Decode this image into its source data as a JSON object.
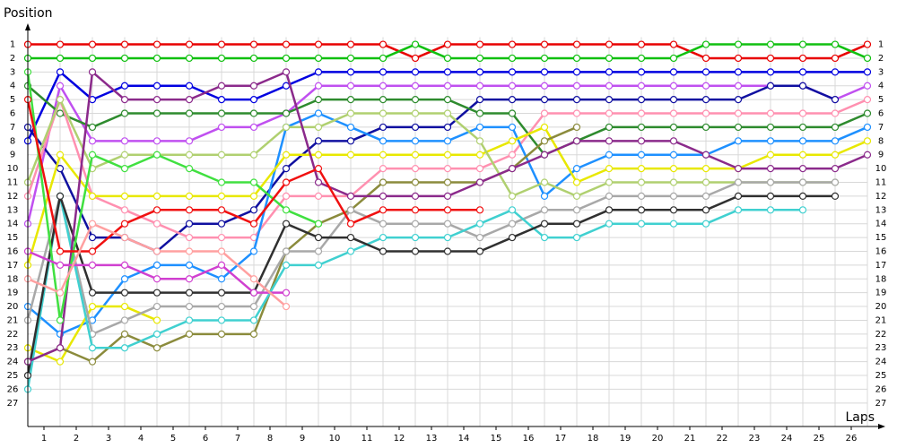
{
  "chart_data": {
    "type": "line",
    "title": "Position",
    "x_label": "Laps",
    "x": [
      0,
      1,
      2,
      3,
      4,
      5,
      6,
      7,
      8,
      9,
      10,
      11,
      12,
      13,
      14,
      15,
      16,
      17,
      18,
      19,
      20,
      21,
      22,
      23,
      24,
      25,
      26
    ],
    "xlim": [
      0,
      26
    ],
    "xticks": [
      {
        "value": 0.5,
        "label": "1"
      },
      {
        "value": 1.5,
        "label": "2"
      },
      {
        "value": 2.5,
        "label": "3"
      },
      {
        "value": 3.5,
        "label": "4"
      },
      {
        "value": 4.5,
        "label": "5"
      },
      {
        "value": 5.5,
        "label": "6"
      },
      {
        "value": 6.5,
        "label": "7"
      },
      {
        "value": 7.5,
        "label": "8"
      },
      {
        "value": 8.5,
        "label": "9"
      },
      {
        "value": 9.5,
        "label": "10"
      },
      {
        "value": 10.5,
        "label": "11"
      },
      {
        "value": 11.5,
        "label": "12"
      },
      {
        "value": 12.5,
        "label": "13"
      },
      {
        "value": 13.5,
        "label": "14"
      },
      {
        "value": 14.5,
        "label": "15"
      },
      {
        "value": 15.5,
        "label": "16"
      },
      {
        "value": 16.5,
        "label": "17"
      },
      {
        "value": 17.5,
        "label": "18"
      },
      {
        "value": 18.5,
        "label": "19"
      },
      {
        "value": 19.5,
        "label": "20"
      },
      {
        "value": 20.5,
        "label": "21"
      },
      {
        "value": 21.5,
        "label": "22"
      },
      {
        "value": 22.5,
        "label": "23"
      },
      {
        "value": 23.5,
        "label": "24"
      },
      {
        "value": 24.5,
        "label": "25"
      },
      {
        "value": 25.5,
        "label": "26"
      }
    ],
    "ylim": [
      28.7,
      -0.4
    ],
    "yticks": [
      1,
      2,
      3,
      4,
      5,
      6,
      7,
      8,
      9,
      10,
      11,
      12,
      13,
      14,
      15,
      16,
      17,
      18,
      19,
      20,
      21,
      22,
      23,
      24,
      25,
      26,
      27
    ],
    "grid": true,
    "series": [
      {
        "color": "#e80000",
        "values": [
          1,
          1,
          1,
          1,
          1,
          1,
          1,
          1,
          1,
          1,
          1,
          1,
          2,
          1,
          1,
          1,
          1,
          1,
          1,
          1,
          1,
          2,
          2,
          2,
          2,
          2,
          1
        ]
      },
      {
        "color": "#10c010",
        "values": [
          2,
          2,
          2,
          2,
          2,
          2,
          2,
          2,
          2,
          2,
          2,
          2,
          1,
          2,
          2,
          2,
          2,
          2,
          2,
          2,
          2,
          1,
          1,
          1,
          1,
          1,
          2
        ]
      },
      {
        "color": "#0000e0",
        "values": [
          8,
          3,
          5,
          4,
          4,
          4,
          5,
          5,
          4,
          3,
          3,
          3,
          3,
          3,
          3,
          3,
          3,
          3,
          3,
          3,
          3,
          3,
          3,
          3,
          3,
          3,
          3
        ]
      },
      {
        "color": "#c050f0",
        "values": [
          14,
          4,
          8,
          8,
          8,
          8,
          7,
          7,
          6,
          4,
          4,
          4,
          4,
          4,
          4,
          4,
          4,
          4,
          4,
          4,
          4,
          4,
          4,
          4,
          4,
          5,
          4
        ]
      },
      {
        "color": "#1010a0",
        "values": [
          7,
          10,
          15,
          15,
          16,
          14,
          14,
          13,
          10,
          8,
          8,
          7,
          7,
          7,
          5,
          5,
          5,
          5,
          5,
          5,
          5,
          5,
          5,
          4,
          4,
          5,
          null
        ]
      },
      {
        "color": "#2e8b2e",
        "values": [
          4,
          6,
          7,
          6,
          6,
          6,
          6,
          6,
          6,
          5,
          5,
          5,
          5,
          5,
          6,
          6,
          9,
          8,
          7,
          7,
          7,
          7,
          7,
          7,
          7,
          7,
          6
        ]
      },
      {
        "color": "#ff90b0",
        "values": [
          12,
          5,
          12,
          13,
          14,
          15,
          15,
          15,
          12,
          12,
          12,
          10,
          10,
          10,
          10,
          9,
          6,
          6,
          6,
          6,
          6,
          6,
          6,
          6,
          6,
          6,
          5
        ]
      },
      {
        "color": "#1e90ff",
        "values": [
          20,
          22,
          21,
          18,
          17,
          17,
          18,
          16,
          7,
          6,
          7,
          8,
          8,
          8,
          7,
          7,
          12,
          10,
          9,
          9,
          9,
          9,
          8,
          8,
          8,
          8,
          7
        ]
      },
      {
        "color": "#e8e800",
        "values": [
          23,
          24,
          20,
          20,
          21,
          null,
          null,
          null,
          null,
          null,
          null,
          null,
          null,
          null,
          null,
          null,
          null,
          null,
          null,
          null,
          null,
          null,
          null,
          null,
          null,
          null,
          null
        ]
      },
      {
        "color": "#e8e800",
        "values": [
          17,
          9,
          12,
          12,
          12,
          12,
          12,
          12,
          9,
          9,
          9,
          9,
          9,
          9,
          9,
          8,
          7,
          11,
          10,
          10,
          10,
          10,
          10,
          9,
          9,
          9,
          8
        ]
      },
      {
        "color": "#b0d070",
        "values": [
          11,
          5,
          10,
          9,
          9,
          9,
          9,
          9,
          7,
          7,
          6,
          6,
          6,
          6,
          8,
          12,
          11,
          12,
          11,
          11,
          11,
          11,
          11,
          11,
          11,
          11,
          null
        ]
      },
      {
        "color": "#8b8b3c",
        "values": [
          24,
          23,
          24,
          22,
          23,
          22,
          22,
          22,
          16,
          14,
          13,
          11,
          11,
          11,
          11,
          10,
          8,
          7,
          null,
          null,
          null,
          null,
          null,
          null,
          null,
          null,
          null
        ]
      },
      {
        "color": "#a8a8a8",
        "values": [
          21,
          12,
          22,
          21,
          20,
          20,
          20,
          20,
          16,
          16,
          13,
          14,
          14,
          14,
          15,
          14,
          13,
          13,
          12,
          12,
          12,
          12,
          11,
          11,
          11,
          11,
          null
        ]
      },
      {
        "color": "#40d0d0",
        "values": [
          26,
          12,
          23,
          23,
          22,
          21,
          21,
          21,
          17,
          17,
          16,
          15,
          15,
          15,
          14,
          13,
          15,
          15,
          14,
          14,
          14,
          14,
          13,
          13,
          13,
          null,
          null
        ]
      },
      {
        "color": "#303030",
        "values": [
          25,
          12,
          19,
          19,
          19,
          19,
          19,
          19,
          14,
          15,
          15,
          16,
          16,
          16,
          16,
          15,
          14,
          14,
          13,
          13,
          13,
          13,
          12,
          12,
          12,
          12,
          null
        ]
      },
      {
        "color": "#8b2a8b",
        "values": [
          24,
          23,
          3,
          5,
          5,
          5,
          4,
          4,
          3,
          11,
          12,
          12,
          12,
          12,
          11,
          10,
          9,
          8,
          8,
          8,
          8,
          9,
          10,
          10,
          10,
          10,
          9
        ]
      },
      {
        "color": "#40e040",
        "values": [
          3,
          21,
          9,
          10,
          9,
          10,
          11,
          11,
          13,
          14,
          null,
          null,
          null,
          null,
          null,
          null,
          null,
          null,
          null,
          null,
          null,
          null,
          null,
          null,
          null,
          null,
          null
        ]
      },
      {
        "color": "#f01010",
        "values": [
          5,
          16,
          16,
          14,
          13,
          13,
          13,
          14,
          11,
          10,
          14,
          13,
          13,
          13,
          13,
          null,
          null,
          null,
          null,
          null,
          null,
          null,
          null,
          null,
          null,
          null,
          null
        ]
      },
      {
        "color": "#d040d0",
        "values": [
          16,
          17,
          17,
          17,
          18,
          18,
          17,
          19,
          19,
          null,
          null,
          null,
          null,
          null,
          null,
          null,
          null,
          null,
          null,
          null,
          null,
          null,
          null,
          null,
          null,
          null,
          null
        ]
      },
      {
        "color": "#ffa0a0",
        "values": [
          18,
          19,
          14,
          15,
          16,
          16,
          16,
          18,
          20,
          null,
          null,
          null,
          null,
          null,
          null,
          null,
          null,
          null,
          null,
          null,
          null,
          null,
          null,
          null,
          null,
          null,
          null
        ]
      }
    ]
  }
}
